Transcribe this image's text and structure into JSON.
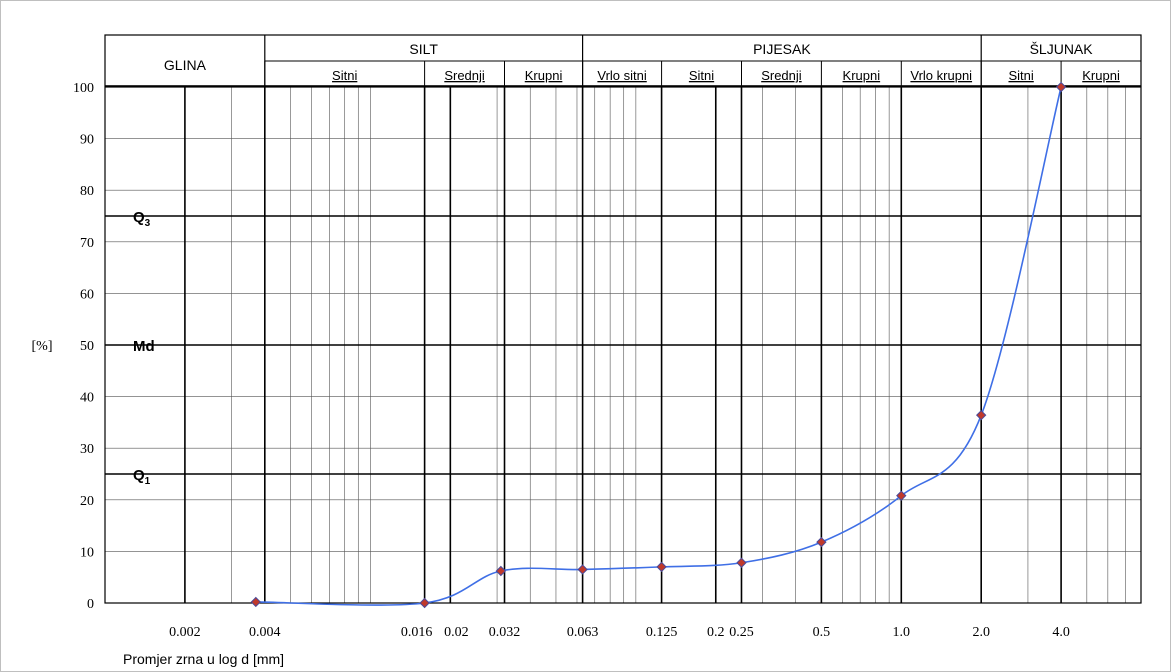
{
  "chart_data": {
    "type": "line",
    "title": "",
    "xlabel": "Promjer zrna u log d [mm]",
    "ylabel": "[%]",
    "x_scale": "log",
    "xlim": [
      0.001,
      8
    ],
    "ylim": [
      0,
      100
    ],
    "y_ticks": [
      0,
      10,
      20,
      30,
      40,
      50,
      60,
      70,
      80,
      90,
      100
    ],
    "x_tick_labels": [
      {
        "value": 0.002,
        "label": "0.002"
      },
      {
        "value": 0.004,
        "label": "0.004"
      },
      {
        "value": 0.016,
        "label": "0.016"
      },
      {
        "value": 0.02,
        "label": "0.02"
      },
      {
        "value": 0.032,
        "label": "0.032"
      },
      {
        "value": 0.063,
        "label": "0.063"
      },
      {
        "value": 0.125,
        "label": "0.125"
      },
      {
        "value": 0.2,
        "label": "0.2"
      },
      {
        "value": 0.25,
        "label": "0.25"
      },
      {
        "value": 0.5,
        "label": "0.5"
      },
      {
        "value": 1.0,
        "label": "1.0"
      },
      {
        "value": 2.0,
        "label": "2.0"
      },
      {
        "value": 4.0,
        "label": "4.0"
      }
    ],
    "major_x_lines": [
      0.002,
      0.004,
      0.016,
      0.02,
      0.032,
      0.063,
      0.125,
      0.2,
      0.25,
      0.5,
      1.0,
      2.0,
      4.0
    ],
    "series": [
      {
        "x": [
          0.0037,
          0.016,
          0.031,
          0.063,
          0.125,
          0.25,
          0.5,
          1.0,
          2.0,
          4.0
        ],
        "y": [
          0.2,
          0.0,
          6.2,
          6.5,
          7.0,
          7.8,
          11.8,
          20.8,
          36.4,
          100.0
        ]
      }
    ],
    "reference_lines": [
      {
        "label": "Q1",
        "label_main": "Q",
        "label_sub": "1",
        "y": 25
      },
      {
        "label": "Md",
        "label_main": "Md",
        "label_sub": "",
        "y": 50
      },
      {
        "label": "Q3",
        "label_main": "Q",
        "label_sub": "3",
        "y": 75
      }
    ],
    "header": {
      "classes": [
        {
          "name": "GLINA",
          "from": 0.001,
          "to": 0.004
        },
        {
          "name": "SILT",
          "from": 0.004,
          "to": 0.063
        },
        {
          "name": "PIJESAK",
          "from": 0.063,
          "to": 2.0
        },
        {
          "name": "ŠLJUNAK",
          "from": 2.0,
          "to": 8
        }
      ],
      "subclasses": [
        {
          "name": "Sitni",
          "from": 0.004,
          "to": 0.016
        },
        {
          "name": "Srednji",
          "from": 0.016,
          "to": 0.032
        },
        {
          "name": "Krupni",
          "from": 0.032,
          "to": 0.063
        },
        {
          "name": "Vrlo sitni",
          "from": 0.063,
          "to": 0.125
        },
        {
          "name": "Sitni",
          "from": 0.125,
          "to": 0.25
        },
        {
          "name": "Srednji",
          "from": 0.25,
          "to": 0.5
        },
        {
          "name": "Krupni",
          "from": 0.5,
          "to": 1.0
        },
        {
          "name": "Vrlo krupni",
          "from": 1.0,
          "to": 2.0
        },
        {
          "name": "Sitni",
          "from": 2.0,
          "to": 4.0
        },
        {
          "name": "Krupni",
          "from": 4.0,
          "to": 8
        }
      ]
    },
    "colors": {
      "line": "#3f6fe6",
      "marker_fill": "#c0392b",
      "marker_stroke": "#4a4a9a",
      "grid": "#555555",
      "major": "#000000"
    },
    "grid": true,
    "legend": "none"
  }
}
